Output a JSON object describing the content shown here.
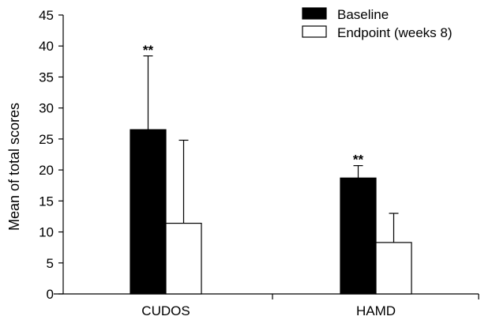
{
  "chart_data": {
    "type": "bar",
    "title": "",
    "xlabel": "",
    "ylabel": "Mean of total scores",
    "ylim": [
      0,
      45
    ],
    "yticks": [
      0,
      5,
      10,
      15,
      20,
      25,
      30,
      35,
      40,
      45
    ],
    "categories": [
      "CUDOS",
      "HAMD"
    ],
    "series": [
      {
        "name": "Baseline",
        "color": "#000000",
        "values": [
          26.5,
          18.7
        ],
        "error_upper": [
          38.4,
          20.7
        ],
        "significance": [
          "**",
          "**"
        ]
      },
      {
        "name": "Endpoint (weeks 8)",
        "color": "#ffffff",
        "values": [
          11.4,
          8.3
        ],
        "error_upper": [
          24.8,
          13.0
        ],
        "significance": [
          "",
          ""
        ]
      }
    ],
    "legend_position": "top-right",
    "grid": false
  }
}
